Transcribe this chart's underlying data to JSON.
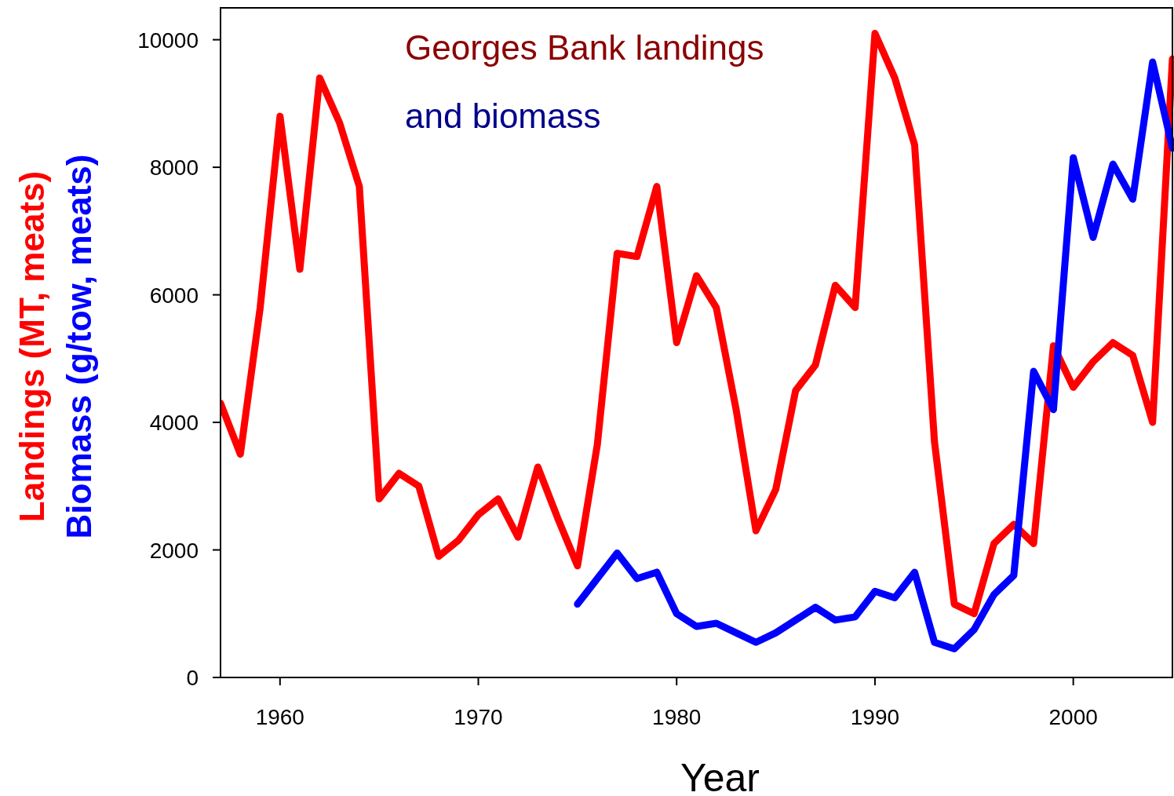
{
  "chart_data": {
    "type": "line",
    "xlabel": "Year",
    "annotations": [
      "Georges Bank landings",
      "and biomass"
    ],
    "xlim": [
      1957,
      2005
    ],
    "xticks": [
      1960,
      1970,
      1980,
      1990,
      2000
    ],
    "ylim": [
      0,
      10500
    ],
    "yticks": [
      0,
      2000,
      4000,
      6000,
      8000,
      10000
    ],
    "grid": false,
    "legend": "left",
    "series": [
      {
        "name": "Landings (MT, meats)",
        "color": "#ff0000",
        "x": [
          1957,
          1958,
          1959,
          1960,
          1961,
          1962,
          1963,
          1964,
          1965,
          1966,
          1967,
          1968,
          1969,
          1970,
          1971,
          1972,
          1973,
          1974,
          1975,
          1976,
          1977,
          1978,
          1979,
          1980,
          1981,
          1982,
          1983,
          1984,
          1985,
          1986,
          1987,
          1988,
          1989,
          1990,
          1991,
          1992,
          1993,
          1994,
          1995,
          1996,
          1997,
          1998,
          1999,
          2000,
          2001,
          2002,
          2003,
          2004,
          2005
        ],
        "values": [
          4300,
          3500,
          5800,
          8800,
          6400,
          9400,
          8700,
          7700,
          2800,
          3200,
          3000,
          1900,
          2150,
          2550,
          2800,
          2200,
          3300,
          2500,
          1750,
          3650,
          6650,
          6600,
          7700,
          5250,
          6300,
          5800,
          4200,
          2300,
          2950,
          4500,
          4900,
          6150,
          5800,
          10100,
          9400,
          8350,
          3700,
          1150,
          1000,
          2100,
          2400,
          2100,
          5200,
          4550,
          4950,
          5250,
          5050,
          4000,
          9700
        ]
      },
      {
        "name": "Biomass (g/tow, meats)",
        "color": "#0000ff",
        "x": [
          1975,
          1976,
          1977,
          1978,
          1979,
          1980,
          1981,
          1982,
          1983,
          1984,
          1985,
          1986,
          1987,
          1988,
          1989,
          1990,
          1991,
          1992,
          1993,
          1994,
          1995,
          1996,
          1997,
          1998,
          1999,
          2000,
          2001,
          2002,
          2003,
          2004,
          2005
        ],
        "values": [
          1150,
          1550,
          1950,
          1550,
          1650,
          1000,
          800,
          850,
          700,
          550,
          700,
          900,
          1100,
          900,
          950,
          1350,
          1250,
          1650,
          550,
          450,
          750,
          1300,
          1600,
          4800,
          4200,
          8150,
          6900,
          8050,
          7500,
          9650,
          8300
        ]
      }
    ]
  }
}
